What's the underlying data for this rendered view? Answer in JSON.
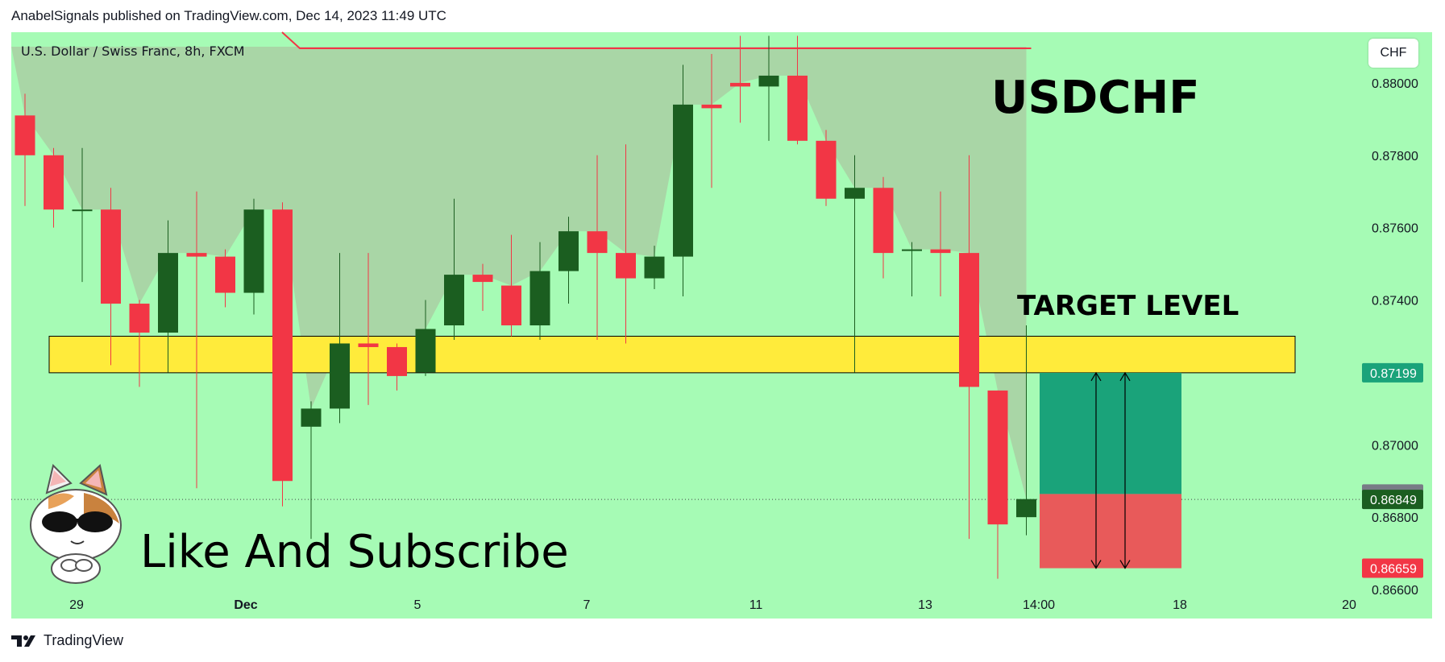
{
  "header": {
    "text": "AnabelSignals published on TradingView.com, Dec 14, 2023 11:49 UTC"
  },
  "footer": {
    "brand": "TradingView"
  },
  "currency_button": "CHF",
  "colors": {
    "background": "#a6fbb5",
    "bull": "#1b5e20",
    "bear": "#f23645",
    "zone": "#ffeb3b",
    "profit": "#1aa37a",
    "loss": "#e85a5a",
    "resistance": "#f23645"
  },
  "chart_data": {
    "type": "candlestick",
    "symbol_line": "U.S. Dollar / Swiss Franc, 8h, FXCM",
    "title": "USDCHF",
    "annotation_target": "TARGET LEVEL",
    "annotation_cta": "Like And Subscribe",
    "y_ticks": [
      "0.88000",
      "0.87800",
      "0.87600",
      "0.87400",
      "0.87000",
      "0.86800",
      "0.86600"
    ],
    "x_ticks": [
      "29",
      "Dec",
      "5",
      "7",
      "11",
      "13",
      "14:00",
      "18",
      "20"
    ],
    "ylim": [
      0.8652,
      0.8814
    ],
    "price_tags": [
      {
        "label": "0.87199",
        "value": 0.87199,
        "color": "#1aa37a"
      },
      {
        "label": "0.86864",
        "value": 0.86864,
        "color": "#787b86"
      },
      {
        "label": "0.86849",
        "value": 0.86849,
        "color": "#1b5e20"
      },
      {
        "label": "0.86659",
        "value": 0.86659,
        "color": "#f23645"
      }
    ],
    "zone": {
      "low": 0.87199,
      "high": 0.873
    },
    "resistance_level": 0.881,
    "position": {
      "entry": 0.86864,
      "target": 0.87199,
      "stop": 0.86659
    },
    "candles": [
      {
        "o": 0.8791,
        "h": 0.8797,
        "l": 0.8766,
        "c": 0.878
      },
      {
        "o": 0.878,
        "h": 0.8782,
        "l": 0.876,
        "c": 0.8765
      },
      {
        "o": 0.8765,
        "h": 0.8782,
        "l": 0.8745,
        "c": 0.8765
      },
      {
        "o": 0.8765,
        "h": 0.8771,
        "l": 0.8722,
        "c": 0.8739
      },
      {
        "o": 0.8739,
        "h": 0.874,
        "l": 0.8716,
        "c": 0.8731
      },
      {
        "o": 0.8731,
        "h": 0.8762,
        "l": 0.872,
        "c": 0.8753
      },
      {
        "o": 0.8753,
        "h": 0.877,
        "l": 0.8688,
        "c": 0.8752
      },
      {
        "o": 0.8752,
        "h": 0.8754,
        "l": 0.8738,
        "c": 0.8742
      },
      {
        "o": 0.8742,
        "h": 0.8768,
        "l": 0.8736,
        "c": 0.8765
      },
      {
        "o": 0.8765,
        "h": 0.8767,
        "l": 0.8683,
        "c": 0.869
      },
      {
        "o": 0.8705,
        "h": 0.8712,
        "l": 0.8674,
        "c": 0.871
      },
      {
        "o": 0.871,
        "h": 0.8753,
        "l": 0.8706,
        "c": 0.8728
      },
      {
        "o": 0.8728,
        "h": 0.8753,
        "l": 0.8711,
        "c": 0.8727
      },
      {
        "o": 0.8727,
        "h": 0.8728,
        "l": 0.8715,
        "c": 0.8719
      },
      {
        "o": 0.872,
        "h": 0.874,
        "l": 0.8719,
        "c": 0.8732
      },
      {
        "o": 0.8733,
        "h": 0.8768,
        "l": 0.8729,
        "c": 0.8747
      },
      {
        "o": 0.8747,
        "h": 0.875,
        "l": 0.8737,
        "c": 0.8745
      },
      {
        "o": 0.8744,
        "h": 0.8758,
        "l": 0.873,
        "c": 0.8733
      },
      {
        "o": 0.8733,
        "h": 0.8756,
        "l": 0.8729,
        "c": 0.8748
      },
      {
        "o": 0.8748,
        "h": 0.8763,
        "l": 0.8739,
        "c": 0.8759
      },
      {
        "o": 0.8759,
        "h": 0.878,
        "l": 0.8729,
        "c": 0.8753
      },
      {
        "o": 0.8753,
        "h": 0.8783,
        "l": 0.8728,
        "c": 0.8746
      },
      {
        "o": 0.8746,
        "h": 0.8755,
        "l": 0.8743,
        "c": 0.8752
      },
      {
        "o": 0.8752,
        "h": 0.8805,
        "l": 0.8741,
        "c": 0.8794
      },
      {
        "o": 0.8794,
        "h": 0.8808,
        "l": 0.8771,
        "c": 0.8793
      },
      {
        "o": 0.88,
        "h": 0.8813,
        "l": 0.8789,
        "c": 0.8799
      },
      {
        "o": 0.8799,
        "h": 0.8813,
        "l": 0.8784,
        "c": 0.8802
      },
      {
        "o": 0.8802,
        "h": 0.8813,
        "l": 0.8783,
        "c": 0.8784
      },
      {
        "o": 0.8784,
        "h": 0.8787,
        "l": 0.8766,
        "c": 0.8768
      },
      {
        "o": 0.8768,
        "h": 0.878,
        "l": 0.872,
        "c": 0.8771
      },
      {
        "o": 0.8771,
        "h": 0.8774,
        "l": 0.8746,
        "c": 0.8753
      },
      {
        "o": 0.8754,
        "h": 0.8756,
        "l": 0.8741,
        "c": 0.8754
      },
      {
        "o": 0.8754,
        "h": 0.877,
        "l": 0.8741,
        "c": 0.8753
      },
      {
        "o": 0.8753,
        "h": 0.878,
        "l": 0.8674,
        "c": 0.8716
      },
      {
        "o": 0.8715,
        "h": 0.8715,
        "l": 0.8663,
        "c": 0.8678
      },
      {
        "o": 0.868,
        "h": 0.8733,
        "l": 0.8675,
        "c": 0.8685
      }
    ]
  }
}
